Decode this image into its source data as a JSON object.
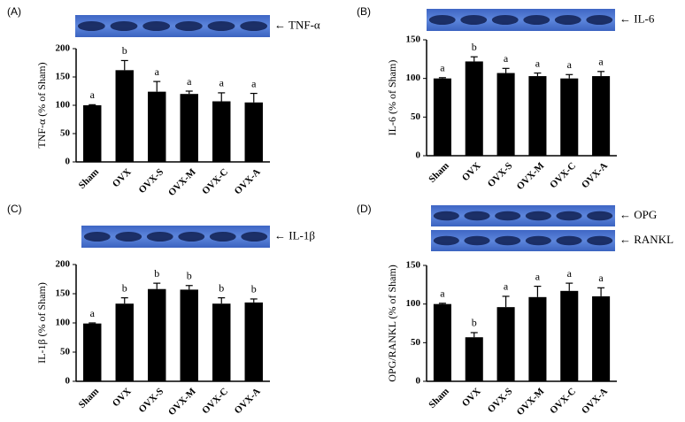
{
  "chart_data": [
    {
      "type": "bar",
      "panel": "(A)",
      "ylabel": "TNF-α (% of Sham)",
      "blots": [
        "← TNF-α"
      ],
      "categories": [
        "Sham",
        "OVX",
        "OVX-S",
        "OVX-M",
        "OVX-C",
        "OVX-A"
      ],
      "values": [
        100,
        162,
        124,
        120,
        107,
        105
      ],
      "errors": [
        1,
        17,
        18,
        5,
        15,
        16
      ],
      "letters": [
        "a",
        "b",
        "a",
        "a",
        "a",
        "a"
      ],
      "color": "#000000",
      "ylim": [
        0,
        200
      ],
      "yticks": [
        0,
        50,
        100,
        150,
        200
      ]
    },
    {
      "type": "bar",
      "panel": "(B)",
      "ylabel": "IL-6 (% of Sham)",
      "blots": [
        "← IL-6"
      ],
      "categories": [
        "Sham",
        "OVX",
        "OVX-S",
        "OVX-M",
        "OVX-C",
        "OVX-A"
      ],
      "values": [
        100,
        122,
        107,
        103,
        100,
        103
      ],
      "errors": [
        1,
        6,
        6,
        4,
        5,
        6
      ],
      "letters": [
        "a",
        "b",
        "a",
        "a",
        "a",
        "a"
      ],
      "color": "#000000",
      "ylim": [
        0,
        150
      ],
      "yticks": [
        0,
        50,
        100,
        150
      ]
    },
    {
      "type": "bar",
      "panel": "(C)",
      "ylabel": "IL-1β (% of Sham)",
      "blots": [
        "← IL-1β"
      ],
      "categories": [
        "Sham",
        "OVX",
        "OVX-S",
        "OVX-M",
        "OVX-C",
        "OVX-A"
      ],
      "values": [
        99,
        133,
        158,
        157,
        133,
        135
      ],
      "errors": [
        1,
        10,
        10,
        7,
        10,
        6
      ],
      "letters": [
        "a",
        "b",
        "b",
        "b",
        "b",
        "b"
      ],
      "color": "#000000",
      "ylim": [
        0,
        200
      ],
      "yticks": [
        0,
        50,
        100,
        150,
        200
      ]
    },
    {
      "type": "bar",
      "panel": "(D)",
      "ylabel": "OPG/RANKL (% of Sham)",
      "blots": [
        "← OPG",
        "← RANKL"
      ],
      "categories": [
        "Sham",
        "OVX",
        "OVX-S",
        "OVX-M",
        "OVX-C",
        "OVX-A"
      ],
      "values": [
        100,
        57,
        96,
        109,
        117,
        110
      ],
      "errors": [
        1,
        6,
        14,
        14,
        10,
        11
      ],
      "letters": [
        "a",
        "b",
        "a",
        "a",
        "a",
        "a"
      ],
      "color": "#000000",
      "ylim": [
        0,
        150
      ],
      "yticks": [
        0,
        50,
        100,
        150
      ]
    }
  ]
}
